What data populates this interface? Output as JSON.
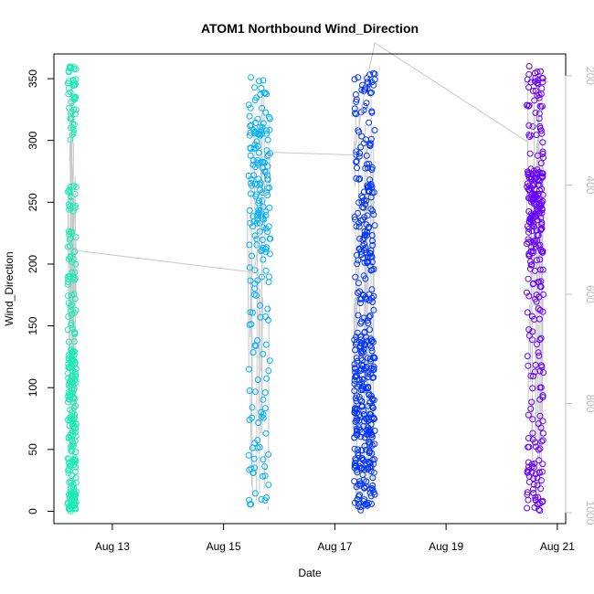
{
  "chart_data": {
    "type": "scatter",
    "title": "ATOM1 Northbound Wind_Direction",
    "xlabel": "Date",
    "ylabel": "Wind_Direction",
    "y2label": "",
    "x_ticks": [
      {
        "label": "Aug 13",
        "day": 13
      },
      {
        "label": "Aug 15",
        "day": 15
      },
      {
        "label": "Aug 17",
        "day": 17
      },
      {
        "label": "Aug 19",
        "day": 19
      },
      {
        "label": "Aug 21",
        "day": 21
      }
    ],
    "y_ticks": [
      0,
      50,
      100,
      150,
      200,
      250,
      300,
      350
    ],
    "y2_ticks": [
      200,
      400,
      600,
      800,
      1000
    ],
    "xlim_day": [
      11.95,
      21.15
    ],
    "ylim": [
      -10,
      370
    ],
    "y2lim": [
      1020,
      160
    ],
    "grid": false,
    "legend": "none",
    "series": [
      {
        "color": "#1de9b6",
        "day_start": 12.2,
        "day_end": 12.35,
        "clusters": [
          [
            0,
            20,
            45
          ],
          [
            20,
            90,
            70
          ],
          [
            90,
            130,
            60
          ],
          [
            130,
            230,
            50
          ],
          [
            240,
            265,
            20
          ],
          [
            300,
            350,
            40
          ],
          [
            355,
            360,
            10
          ]
        ]
      },
      {
        "color": "#00b0ff",
        "day_start": 15.45,
        "day_end": 15.85,
        "clusters": [
          [
            5,
            60,
            25
          ],
          [
            60,
            140,
            25
          ],
          [
            150,
            210,
            25
          ],
          [
            210,
            260,
            50
          ],
          [
            260,
            310,
            60
          ],
          [
            310,
            340,
            20
          ],
          [
            340,
            356,
            5
          ]
        ]
      },
      {
        "color": "#0033ff",
        "day_start": 17.35,
        "day_end": 17.72,
        "clusters": [
          [
            0,
            50,
            80
          ],
          [
            50,
            140,
            160
          ],
          [
            140,
            200,
            40
          ],
          [
            200,
            270,
            80
          ],
          [
            270,
            340,
            40
          ],
          [
            340,
            358,
            20
          ]
        ]
      },
      {
        "color": "#6600ff",
        "day_start": 20.45,
        "day_end": 20.75,
        "clusters": [
          [
            0,
            40,
            40
          ],
          [
            40,
            180,
            60
          ],
          [
            180,
            240,
            70
          ],
          [
            240,
            275,
            80
          ],
          [
            275,
            330,
            30
          ],
          [
            330,
            360,
            25
          ]
        ]
      }
    ],
    "line_color": "#c8c8c8",
    "line_series": [
      {
        "day": 12.22,
        "y2": 240
      },
      {
        "day": 12.35,
        "y2": 520
      },
      {
        "day": 15.55,
        "y2": 560
      },
      {
        "day": 15.85,
        "y2": 340
      },
      {
        "day": 17.35,
        "y2": 345
      },
      {
        "day": 17.55,
        "y2": 220
      },
      {
        "day": 17.72,
        "y2": 140
      },
      {
        "day": 20.45,
        "y2": 320
      },
      {
        "day": 20.75,
        "y2": 250
      }
    ]
  }
}
